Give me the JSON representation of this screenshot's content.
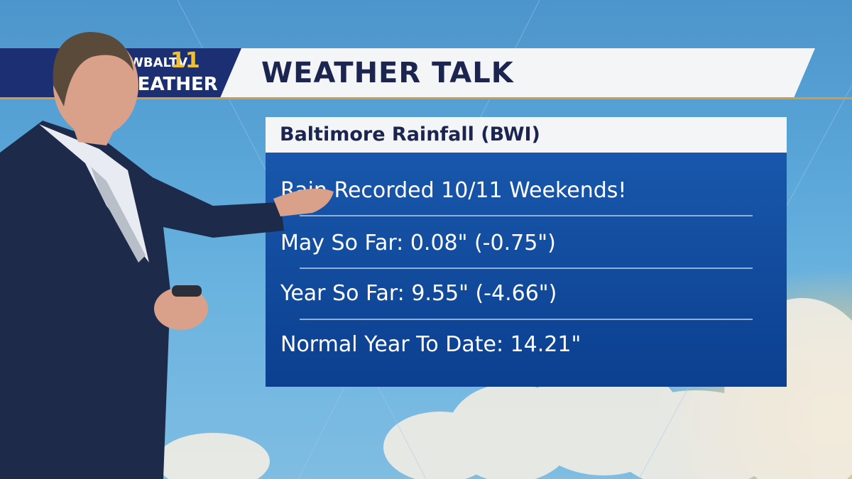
{
  "header": {
    "logo_station": "WBALTV",
    "logo_channel": "11",
    "logo_weather": "WEATHER",
    "title": "WEATHER TALK"
  },
  "panel": {
    "title": "Baltimore Rainfall (BWI)",
    "rows": [
      "Rain Recorded 10/11 Weekends!",
      "May So Far: 0.08\" (-0.75\")",
      "Year So Far: 9.55\" (-4.66\")",
      "Normal Year To Date: 14.21\""
    ]
  }
}
